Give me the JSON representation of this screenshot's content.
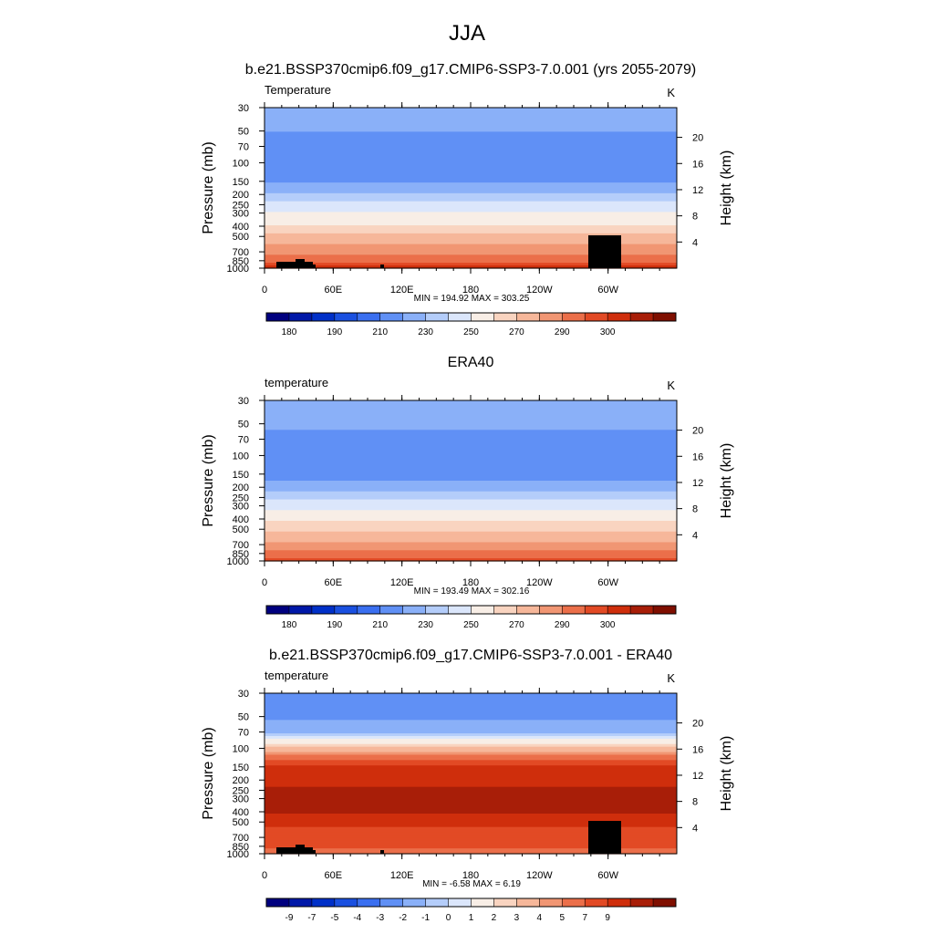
{
  "page_title": "JJA",
  "chart_data": [
    {
      "type": "heatmap",
      "title": "b.e21.BSSP370cmip6.f09_g17.CMIP6-SSP3-7.0.001 (yrs 2055-2079)",
      "variable": "Temperature",
      "units": "K",
      "ylabel": "Pressure (mb)",
      "ylabel_right": "Height (km)",
      "y_scale": "log",
      "y_ticks": [
        "30",
        "50",
        "70",
        "100",
        "150",
        "200",
        "250",
        "300",
        "400",
        "500",
        "700",
        "850",
        "1000"
      ],
      "y_right_ticks": [
        "4",
        "8",
        "12",
        "16",
        "20"
      ],
      "x_ticks": [
        "0",
        "60E",
        "120E",
        "180",
        "120W",
        "60W"
      ],
      "min_label": "MIN = 194.92",
      "max_label": "MAX = 303.25",
      "colorbar_labels": [
        "180",
        "190",
        "210",
        "230",
        "250",
        "270",
        "290",
        "300"
      ],
      "profile": [
        {
          "p": 30,
          "v": 215
        },
        {
          "p": 50,
          "v": 210
        },
        {
          "p": 70,
          "v": 205
        },
        {
          "p": 100,
          "v": 202
        },
        {
          "p": 150,
          "v": 210
        },
        {
          "p": 200,
          "v": 222
        },
        {
          "p": 250,
          "v": 233
        },
        {
          "p": 300,
          "v": 240
        },
        {
          "p": 400,
          "v": 252
        },
        {
          "p": 500,
          "v": 262
        },
        {
          "p": 700,
          "v": 278
        },
        {
          "p": 850,
          "v": 288
        },
        {
          "p": 1000,
          "v": 298
        }
      ]
    },
    {
      "type": "heatmap",
      "title": "ERA40",
      "variable": "temperature",
      "units": "K",
      "ylabel": "Pressure (mb)",
      "ylabel_right": "Height (km)",
      "y_scale": "log",
      "y_ticks": [
        "30",
        "50",
        "70",
        "100",
        "150",
        "200",
        "250",
        "300",
        "400",
        "500",
        "700",
        "850",
        "1000"
      ],
      "y_right_ticks": [
        "4",
        "8",
        "12",
        "16",
        "20"
      ],
      "x_ticks": [
        "0",
        "60E",
        "120E",
        "180",
        "120W",
        "60W"
      ],
      "min_label": "MIN = 193.49",
      "max_label": "MAX = 302.16",
      "colorbar_labels": [
        "180",
        "190",
        "210",
        "230",
        "250",
        "270",
        "290",
        "300"
      ],
      "profile": [
        {
          "p": 30,
          "v": 218
        },
        {
          "p": 50,
          "v": 212
        },
        {
          "p": 70,
          "v": 207
        },
        {
          "p": 100,
          "v": 200
        },
        {
          "p": 150,
          "v": 205
        },
        {
          "p": 200,
          "v": 215
        },
        {
          "p": 250,
          "v": 228
        },
        {
          "p": 300,
          "v": 236
        },
        {
          "p": 400,
          "v": 248
        },
        {
          "p": 500,
          "v": 258
        },
        {
          "p": 700,
          "v": 272
        },
        {
          "p": 850,
          "v": 283
        },
        {
          "p": 1000,
          "v": 293
        }
      ]
    },
    {
      "type": "heatmap",
      "title": "b.e21.BSSP370cmip6.f09_g17.CMIP6-SSP3-7.0.001 - ERA40",
      "variable": "temperature",
      "units": "K",
      "ylabel": "Pressure (mb)",
      "ylabel_right": "Height (km)",
      "y_scale": "log",
      "y_ticks": [
        "30",
        "50",
        "70",
        "100",
        "150",
        "200",
        "250",
        "300",
        "400",
        "500",
        "700",
        "850",
        "1000"
      ],
      "y_right_ticks": [
        "4",
        "8",
        "12",
        "16",
        "20"
      ],
      "x_ticks": [
        "0",
        "60E",
        "120E",
        "180",
        "120W",
        "60W"
      ],
      "min_label": "MIN = -6.58",
      "max_label": "MAX =  6.19",
      "colorbar_labels": [
        "-9",
        "-7",
        "-5",
        "-4",
        "-3",
        "-2",
        "-1",
        "0",
        "1",
        "2",
        "3",
        "4",
        "5",
        "7",
        "9"
      ],
      "profile": [
        {
          "p": 30,
          "v": -5.5
        },
        {
          "p": 50,
          "v": -5.2
        },
        {
          "p": 70,
          "v": -4.2
        },
        {
          "p": 100,
          "v": 0.5
        },
        {
          "p": 150,
          "v": 4.2
        },
        {
          "p": 200,
          "v": 4.6
        },
        {
          "p": 250,
          "v": 5.3
        },
        {
          "p": 300,
          "v": 5.3
        },
        {
          "p": 400,
          "v": 5.2
        },
        {
          "p": 500,
          "v": 4.4
        },
        {
          "p": 700,
          "v": 3.2
        },
        {
          "p": 850,
          "v": 3.3
        },
        {
          "p": 1000,
          "v": 2.5
        }
      ]
    }
  ],
  "palettes": {
    "temperature": [
      "#00007f",
      "#0018a8",
      "#0030c8",
      "#1a50e0",
      "#3a6ff0",
      "#6090f5",
      "#8ab0f8",
      "#b4cdfa",
      "#dbe6fb",
      "#f8eee6",
      "#f9d4c0",
      "#f6b79a",
      "#f19673",
      "#eb6f4a",
      "#e24a25",
      "#cf2e0c",
      "#a81e08",
      "#7f0f00"
    ],
    "difference": [
      "#00007f",
      "#0018a8",
      "#0030c8",
      "#1a50e0",
      "#3a6ff0",
      "#6090f5",
      "#8ab0f8",
      "#b4cdfa",
      "#dbe6fb",
      "#f8eee6",
      "#f9d4c0",
      "#f6b79a",
      "#f19673",
      "#eb6f4a",
      "#e24a25",
      "#cf2e0c",
      "#a81e08",
      "#7f0f00"
    ]
  },
  "levels": {
    "temperature": [
      175,
      180,
      185,
      190,
      200,
      210,
      220,
      230,
      240,
      250,
      260,
      270,
      280,
      290,
      295,
      300,
      305
    ],
    "difference": [
      -10,
      -9,
      -8,
      -7,
      -6,
      -5,
      -4,
      -3,
      -2,
      -1,
      0,
      1,
      2,
      3,
      4,
      5,
      7,
      9
    ]
  }
}
